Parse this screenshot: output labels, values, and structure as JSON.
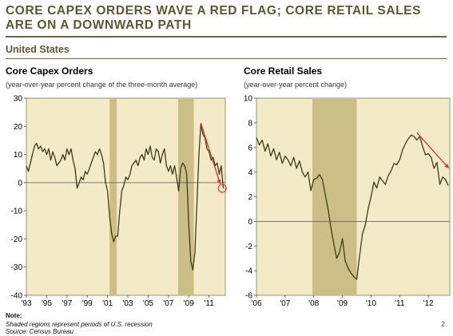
{
  "header": {
    "title": "CORE CAPEX ORDERS WAVE A RED FLAG; CORE RETAIL SALES ARE ON A DOWNWARD PATH",
    "subtitle": "United States"
  },
  "footer": {
    "note_label": "Note:",
    "note_text": "Shaded regions represent periods of U.S. recession",
    "source": "Source: Census Bureau",
    "page_number": "2"
  },
  "colors": {
    "background": "#f3ebc8",
    "recession": "#cbbf87",
    "line": "#3d3d12",
    "arrow": "#e0332b"
  },
  "chart_data": [
    {
      "type": "line",
      "title": "Core Capex Orders",
      "subtitle": "(year-over-year percent change of the three-month average)",
      "xlim": [
        1993,
        2012.6
      ],
      "ylim": [
        -40,
        30
      ],
      "yticks": [
        30,
        20,
        10,
        0,
        -10,
        -20,
        -30,
        -40
      ],
      "ytick_labels": [
        "30",
        "20",
        "10",
        "0",
        "-10",
        "-20",
        "-30",
        "-40"
      ],
      "xticks": [
        1993,
        1995,
        1997,
        1999,
        2001,
        2003,
        2005,
        2007,
        2009,
        2011
      ],
      "xtick_labels": [
        "'93",
        "'95",
        "'97",
        "'99",
        "'01",
        "'03",
        "'05",
        "'07",
        "'09",
        "'11"
      ],
      "recessions": [
        [
          2001.2,
          2001.9
        ],
        [
          2007.95,
          2009.5
        ]
      ],
      "series": [
        {
          "x": [
            1993.0,
            1993.2,
            1993.4,
            1993.6,
            1993.8,
            1994.0,
            1994.2,
            1994.4,
            1994.6,
            1994.8,
            1995.0,
            1995.2,
            1995.4,
            1995.6,
            1995.8,
            1996.0,
            1996.2,
            1996.4,
            1996.6,
            1996.8,
            1997.0,
            1997.2,
            1997.4,
            1997.6,
            1997.8,
            1998.0,
            1998.2,
            1998.4,
            1998.6,
            1998.8,
            1999.0,
            1999.2,
            1999.4,
            1999.6,
            1999.8,
            2000.0,
            2000.2,
            2000.4,
            2000.6,
            2000.8,
            2001.0,
            2001.2,
            2001.4,
            2001.6,
            2001.8,
            2002.0,
            2002.2,
            2002.4,
            2002.6,
            2002.8,
            2003.0,
            2003.2,
            2003.4,
            2003.6,
            2003.8,
            2004.0,
            2004.2,
            2004.4,
            2004.6,
            2004.8,
            2005.0,
            2005.2,
            2005.4,
            2005.6,
            2005.8,
            2006.0,
            2006.2,
            2006.4,
            2006.6,
            2006.8,
            2007.0,
            2007.2,
            2007.4,
            2007.6,
            2007.8,
            2008.0,
            2008.2,
            2008.4,
            2008.6,
            2008.8,
            2009.0,
            2009.2,
            2009.4,
            2009.6,
            2009.8,
            2010.0,
            2010.2,
            2010.4,
            2010.6,
            2010.8,
            2011.0,
            2011.2,
            2011.4,
            2011.6,
            2011.8,
            2012.0,
            2012.2,
            2012.4
          ],
          "y": [
            6,
            4,
            7,
            10,
            13,
            14,
            12,
            13,
            11,
            12,
            10,
            12,
            8,
            11,
            9,
            6,
            7,
            8,
            10,
            8,
            12,
            10,
            12,
            8,
            5,
            -2,
            0,
            2,
            1,
            4,
            3,
            5,
            7,
            9,
            11,
            10,
            12,
            10,
            7,
            0,
            -3,
            -12,
            -18,
            -21,
            -19,
            -19,
            -10,
            -3,
            -1,
            2,
            1,
            3,
            6,
            7,
            8,
            6,
            9,
            10,
            8,
            12,
            10,
            13,
            9,
            8,
            12,
            11,
            7,
            10,
            12,
            6,
            4,
            6,
            3,
            6,
            2,
            -3,
            5,
            7,
            6,
            3,
            -15,
            -28,
            -31,
            -25,
            -8,
            10,
            21,
            17,
            16,
            12,
            11,
            8,
            9,
            6,
            7,
            3,
            6,
            -2
          ]
        }
      ],
      "annotation": "red arrow pointing down to circled 0 level"
    },
    {
      "type": "line",
      "title": "Core Retail Sales",
      "subtitle": "(year-over-year percent change)",
      "xlim": [
        2006,
        2012.75
      ],
      "ylim": [
        -6,
        10
      ],
      "yticks": [
        10,
        8,
        6,
        4,
        2,
        0,
        -2,
        -4,
        -6
      ],
      "ytick_labels": [
        "10",
        "8",
        "6",
        "4",
        "2",
        "0",
        "-2",
        "-4",
        "-6"
      ],
      "xticks": [
        2006,
        2007,
        2008,
        2009,
        2010,
        2011,
        2012
      ],
      "xtick_labels": [
        "'06",
        "'07",
        "'08",
        "'09",
        "'10",
        "'11",
        "'12"
      ],
      "recessions": [
        [
          2007.95,
          2009.5
        ]
      ],
      "series": [
        {
          "x": [
            2006.0,
            2006.1,
            2006.2,
            2006.3,
            2006.4,
            2006.5,
            2006.6,
            2006.7,
            2006.8,
            2006.9,
            2007.0,
            2007.1,
            2007.2,
            2007.3,
            2007.4,
            2007.5,
            2007.6,
            2007.7,
            2007.8,
            2007.9,
            2008.0,
            2008.1,
            2008.2,
            2008.3,
            2008.4,
            2008.5,
            2008.6,
            2008.7,
            2008.8,
            2008.9,
            2009.0,
            2009.1,
            2009.2,
            2009.3,
            2009.4,
            2009.5,
            2009.6,
            2009.7,
            2009.8,
            2009.9,
            2010.0,
            2010.1,
            2010.2,
            2010.3,
            2010.4,
            2010.5,
            2010.6,
            2010.7,
            2010.8,
            2010.9,
            2011.0,
            2011.1,
            2011.2,
            2011.3,
            2011.4,
            2011.5,
            2011.6,
            2011.7,
            2011.8,
            2011.9,
            2012.0,
            2012.1,
            2012.2,
            2012.3,
            2012.4,
            2012.5,
            2012.6,
            2012.7
          ],
          "y": [
            6.8,
            6.2,
            6.6,
            5.7,
            6.3,
            5.3,
            5.9,
            5.0,
            5.6,
            4.7,
            5.3,
            5.0,
            4.5,
            5.2,
            4.3,
            4.9,
            4.0,
            3.6,
            4.0,
            2.5,
            3.4,
            3.5,
            3.8,
            3.4,
            2.2,
            1.0,
            -0.5,
            -1.8,
            -3.0,
            -2.5,
            -1.4,
            -3.2,
            -3.8,
            -4.2,
            -4.5,
            -4.7,
            -2.8,
            -1.0,
            -0.3,
            1.0,
            2.0,
            3.2,
            2.7,
            3.6,
            3.3,
            3.0,
            3.7,
            4.1,
            4.7,
            4.6,
            5.0,
            5.8,
            6.3,
            6.7,
            7.0,
            6.9,
            6.6,
            6.9,
            6.1,
            5.4,
            5.5,
            5.2,
            4.3,
            4.8,
            3.0,
            3.6,
            3.4,
            2.9
          ]
        }
      ],
      "annotation": "red arrow pointing down"
    }
  ]
}
